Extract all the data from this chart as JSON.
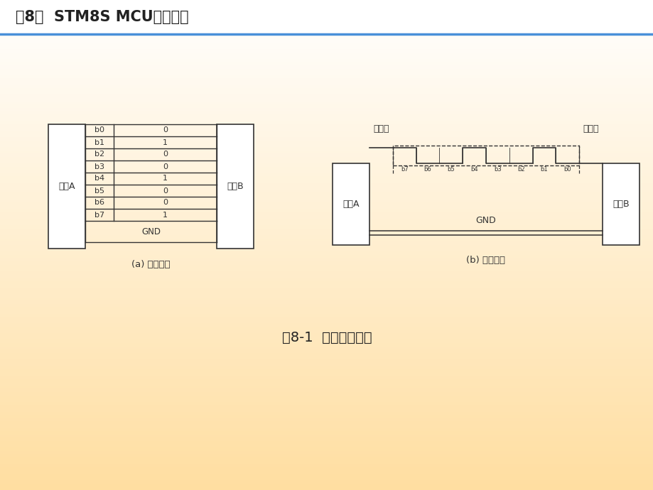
{
  "title": "第8章  STM8S MCU串行通信",
  "title_fontsize": 15,
  "title_color": "#222222",
  "fig_caption": "图8-1  基本通信方式",
  "caption_fontsize": 14,
  "sub_a_label": "(a) 并行通信",
  "sub_b_label": "(b) 串行通信",
  "parallel_bits": [
    "b0",
    "b1",
    "b2",
    "b3",
    "b4",
    "b5",
    "b6",
    "b7"
  ],
  "parallel_values": [
    "0",
    "1",
    "0",
    "0",
    "1",
    "0",
    "0",
    "1"
  ],
  "parallel_gnd": "GND",
  "device_a_label": "设备A",
  "device_b_label": "设备B",
  "stop_bit_label": "停止位",
  "start_bit_label": "起始位",
  "serial_gnd": "GND",
  "serial_data": [
    "1",
    "1",
    "0",
    "0",
    "1",
    "0",
    "0",
    "1",
    "0",
    "0"
  ],
  "line_color": "#333333",
  "header_line_color": "#4a90d9"
}
